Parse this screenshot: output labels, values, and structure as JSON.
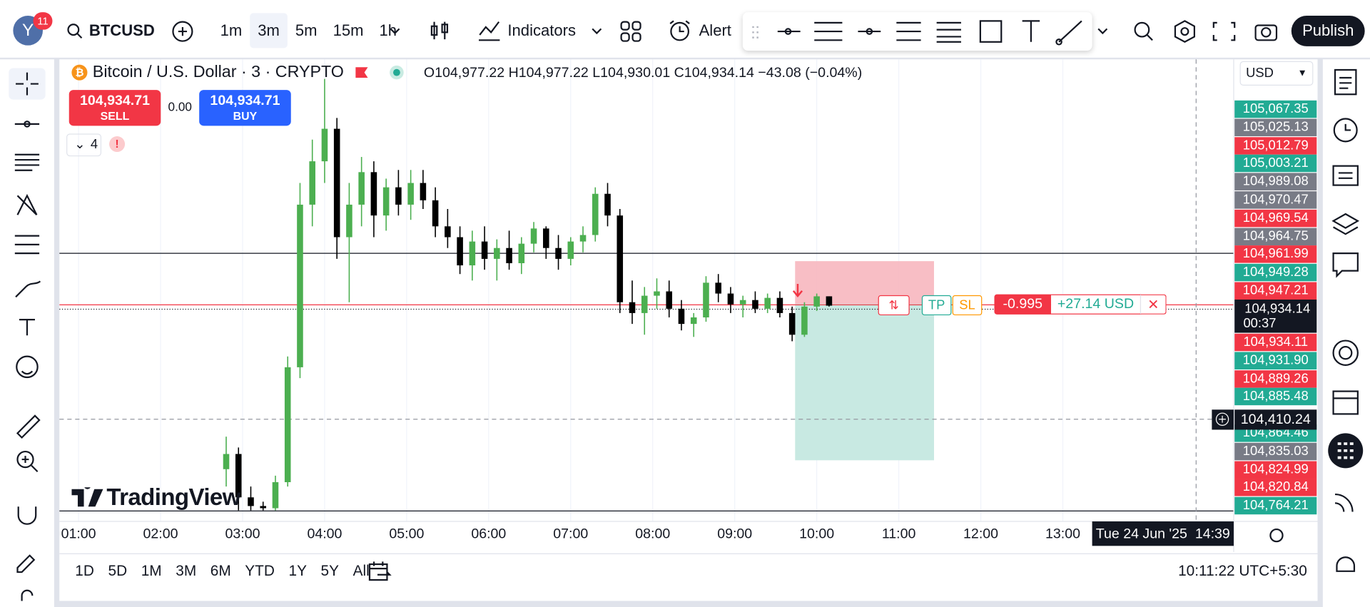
{
  "top_bar": {
    "avatar": "Y",
    "notifications": "11",
    "symbol": "BTCUSD",
    "intervals": [
      "1m",
      "3m",
      "5m",
      "15m",
      "1h"
    ],
    "indicators": "Indicators",
    "alert": "Alert",
    "publish": "Publish"
  },
  "legend": {
    "title": "Bitcoin / U.S. Dollar · 3 · CRYPTO",
    "ohlc": "O104,977.22 H104,977.22 L104,930.01 C104,934.14 −43.08 (−0.04%)"
  },
  "order_panel": {
    "sell_price": "104,934.71",
    "sell": "SELL",
    "spread": "0.00",
    "buy_price": "104,934.71",
    "buy": "BUY"
  },
  "indicators_count": "4",
  "position": {
    "tp": "TP",
    "sl": "SL",
    "quantity": "-0.995",
    "pnl": "+27.14 USD"
  },
  "currency": "USD",
  "watermark": "TradingView",
  "price_tags_above": [
    {
      "label": "105,067.35",
      "color": "#22ab94"
    },
    {
      "label": "105,025.13",
      "color": "#787b86"
    },
    {
      "label": "105,012.79",
      "color": "#f23645"
    },
    {
      "label": "105,003.21",
      "color": "#22ab94"
    },
    {
      "label": "104,989.08",
      "color": "#787b86"
    },
    {
      "label": "104,970.47",
      "color": "#787b86"
    },
    {
      "label": "104,969.54",
      "color": "#f23645"
    },
    {
      "label": "104,964.75",
      "color": "#787b86"
    },
    {
      "label": "104,961.99",
      "color": "#f23645"
    },
    {
      "label": "104,949.28",
      "color": "#22ab94"
    },
    {
      "label": "104,947.21",
      "color": "#f23645"
    }
  ],
  "current_price": {
    "label": "104,934.14",
    "countdown": "00:37"
  },
  "price_tags_below": [
    {
      "label": "104,934.11",
      "color": "#f23645"
    },
    {
      "label": "104,931.90",
      "color": "#22ab94"
    },
    {
      "label": "104,889.26",
      "color": "#f23645"
    },
    {
      "label": "104,885.48",
      "color": "#22ab94"
    },
    {
      "label": "104,864.46",
      "color": "#22ab94"
    },
    {
      "label": "104,835.03",
      "color": "#787b86"
    },
    {
      "label": "104,824.99",
      "color": "#f23645"
    },
    {
      "label": "104,820.84",
      "color": "#f23645"
    },
    {
      "label": "104,764.21",
      "color": "#22ab94"
    }
  ],
  "crosshair": {
    "price": "104,410.24",
    "time": "Tue 24 Jun '25  14:39"
  },
  "ranges": [
    "1D",
    "5D",
    "1M",
    "3M",
    "6M",
    "YTD",
    "1Y",
    "5Y",
    "All"
  ],
  "clock": "10:11:22 UTC+5:30",
  "chart_data": {
    "type": "candlestick",
    "x": [
      168,
      177,
      186,
      195,
      204,
      213,
      222,
      231,
      240,
      249,
      258,
      267,
      276,
      285,
      294,
      303,
      312,
      321,
      330,
      339,
      348,
      357,
      366,
      375,
      384,
      393,
      402,
      411,
      420,
      429,
      438,
      447,
      456,
      465,
      474,
      483,
      492,
      501,
      510,
      519,
      528,
      537,
      546,
      555,
      564,
      573,
      582,
      591,
      600,
      609
    ],
    "open": [
      104180,
      104250,
      104050,
      104010,
      104000,
      104120,
      104650,
      105400,
      105600,
      105750,
      105250,
      105400,
      105550,
      105350,
      105480,
      105400,
      105500,
      105420,
      105300,
      105250,
      105120,
      105230,
      105150,
      105200,
      105130,
      105220,
      105290,
      105200,
      105150,
      105230,
      105260,
      105450,
      105350,
      104950,
      104900,
      104980,
      105000,
      104920,
      104850,
      104880,
      105040,
      104990,
      104940,
      104960,
      104920,
      104970,
      104900,
      104800,
      104930,
      104977.22
    ],
    "high": [
      104330,
      104280,
      104100,
      104030,
      104150,
      104700,
      105500,
      105700,
      105980,
      105800,
      105500,
      105620,
      105600,
      105520,
      105560,
      105560,
      105560,
      105480,
      105380,
      105300,
      105280,
      105300,
      105240,
      105280,
      105250,
      105320,
      105300,
      105260,
      105250,
      105300,
      105480,
      105500,
      105380,
      105050,
      105020,
      105060,
      105050,
      104960,
      104900,
      105070,
      105080,
      105020,
      104980,
      105000,
      104990,
      105000,
      104930,
      104950,
      104990,
      104977.22
    ],
    "low": [
      104100,
      103990,
      103990,
      103990,
      103990,
      104100,
      104600,
      105300,
      105500,
      105150,
      104950,
      105300,
      105250,
      105280,
      105350,
      105330,
      105380,
      105250,
      105200,
      105080,
      105050,
      105100,
      105050,
      105100,
      105080,
      105180,
      105150,
      105100,
      105120,
      105180,
      105230,
      105300,
      104900,
      104850,
      104800,
      104920,
      104880,
      104820,
      104790,
      104860,
      104950,
      104900,
      104880,
      104900,
      104900,
      104880,
      104770,
      104790,
      104910,
      104930.01
    ],
    "close": [
      104250,
      104050,
      104010,
      104000,
      104120,
      104650,
      105400,
      105600,
      105750,
      105250,
      105400,
      105550,
      105350,
      105480,
      105400,
      105500,
      105420,
      105300,
      105250,
      105120,
      105230,
      105150,
      105200,
      105130,
      105220,
      105290,
      105200,
      105150,
      105230,
      105260,
      105450,
      105350,
      104950,
      104900,
      104980,
      105000,
      104920,
      104850,
      104880,
      105040,
      104990,
      104940,
      104960,
      104920,
      104970,
      104900,
      104800,
      104930,
      104977.22,
      104934.14
    ],
    "up_color": "#4caf50",
    "down_color": "#000000",
    "xlim": [
      46,
      905
    ],
    "ylim": [
      103939,
      106070
    ],
    "xticks": [
      {
        "value": 60,
        "label": "01:00"
      },
      {
        "value": 120,
        "label": "02:00"
      },
      {
        "value": 180,
        "label": "03:00"
      },
      {
        "value": 240,
        "label": "04:00"
      },
      {
        "value": 300,
        "label": "05:00"
      },
      {
        "value": 360,
        "label": "06:00"
      },
      {
        "value": 420,
        "label": "07:00"
      },
      {
        "value": 480,
        "label": "08:00"
      },
      {
        "value": 540,
        "label": "09:00"
      },
      {
        "value": 600,
        "label": "10:00"
      },
      {
        "value": 660,
        "label": "11:00"
      },
      {
        "value": 720,
        "label": "12:00"
      },
      {
        "value": 780,
        "label": "13:00"
      }
    ],
    "grid": true
  }
}
